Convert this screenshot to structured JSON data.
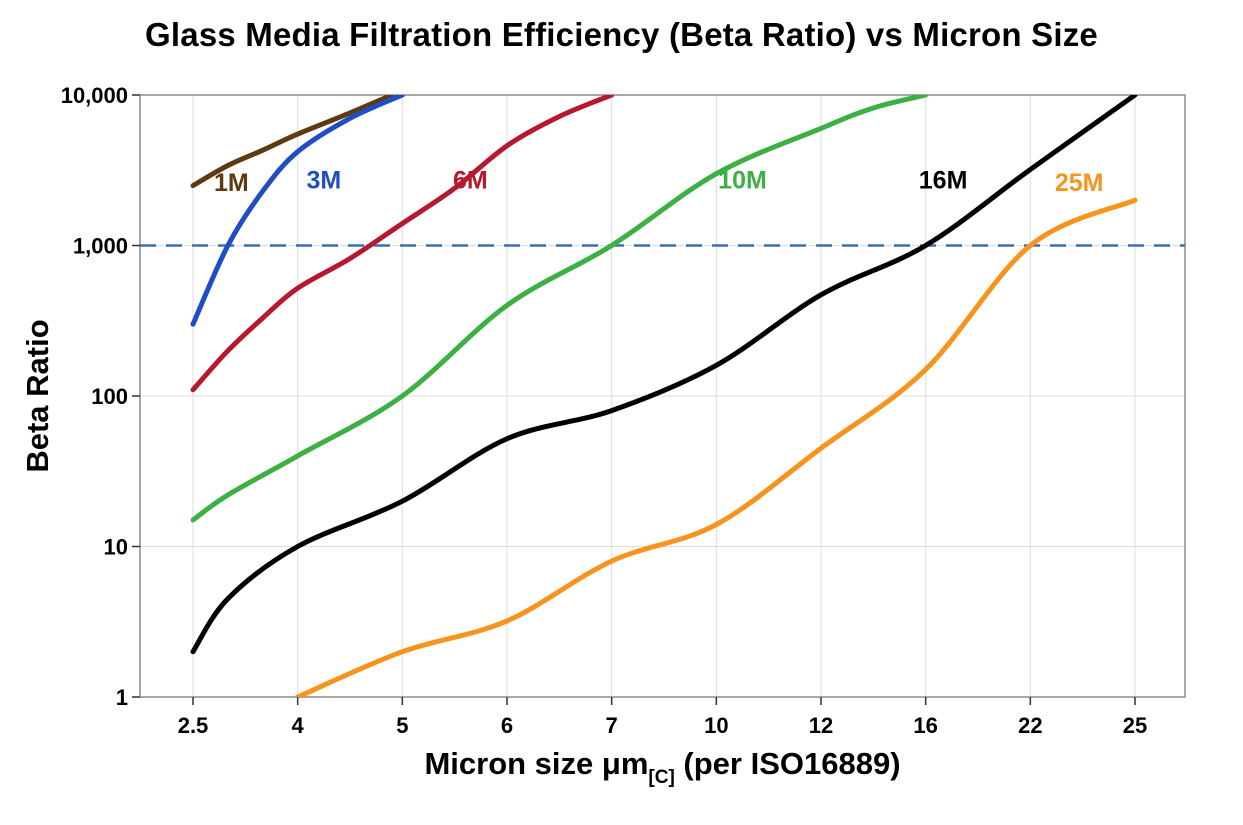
{
  "chart": {
    "title": "Glass Media Filtration Efficiency (Beta Ratio) vs Micron Size",
    "ylabel": "Beta Ratio",
    "xlabel_main": "Micron size μm",
    "xlabel_sub": "[C]",
    "xlabel_rest": " (per ISO16889)"
  },
  "chart_data": {
    "type": "line",
    "title": "Glass Media Filtration Efficiency (Beta Ratio) vs Micron Size",
    "xlabel": "Micron size μm[C] (per ISO16889)",
    "ylabel": "Beta Ratio",
    "x_scale": "category",
    "y_scale": "log",
    "grid": true,
    "legend_position": "inline-labels",
    "x_categories": [
      2.5,
      4,
      5,
      6,
      7,
      10,
      12,
      16,
      22,
      25
    ],
    "x_tick_labels": [
      "2.5",
      "4",
      "5",
      "6",
      "7",
      "10",
      "12",
      "16",
      "22",
      "25"
    ],
    "y_ticks": [
      1,
      10,
      100,
      1000,
      10000
    ],
    "y_tick_labels": [
      "1",
      "10",
      "100",
      "1,000",
      "10,000"
    ],
    "ylim": [
      1,
      10000
    ],
    "threshold_line": {
      "y": 1000,
      "style": "dashed",
      "color": "#3d6eb5"
    },
    "series": [
      {
        "name": "1M",
        "color": "#5e3a10",
        "label_pos": [
          3.05,
          2300
        ],
        "points": [
          [
            2.5,
            2500
          ],
          [
            3,
            3400
          ],
          [
            3.5,
            4300
          ],
          [
            4,
            5500
          ],
          [
            4.5,
            7600
          ],
          [
            4.9,
            10000
          ]
        ]
      },
      {
        "name": "3M",
        "color": "#1f4dc5",
        "label_pos": [
          4.25,
          2400
        ],
        "points": [
          [
            2.5,
            300
          ],
          [
            3,
            1000
          ],
          [
            3.5,
            2300
          ],
          [
            4,
            4200
          ],
          [
            4.5,
            7000
          ],
          [
            5,
            10000
          ]
        ]
      },
      {
        "name": "6M",
        "color": "#b5182f",
        "label_pos": [
          5.65,
          2400
        ],
        "points": [
          [
            2.5,
            110
          ],
          [
            3,
            200
          ],
          [
            3.5,
            330
          ],
          [
            4,
            520
          ],
          [
            4.5,
            820
          ],
          [
            5,
            1400
          ],
          [
            5.5,
            2400
          ],
          [
            6,
            4600
          ],
          [
            6.5,
            7200
          ],
          [
            7,
            10000
          ]
        ]
      },
      {
        "name": "10M",
        "color": "#3cb043",
        "label_pos": [
          10.5,
          2400
        ],
        "points": [
          [
            2.5,
            15
          ],
          [
            3,
            22
          ],
          [
            4,
            40
          ],
          [
            5,
            100
          ],
          [
            6,
            400
          ],
          [
            7,
            1000
          ],
          [
            10,
            3000
          ],
          [
            12,
            6000
          ],
          [
            14,
            8200
          ],
          [
            16,
            10000
          ]
        ]
      },
      {
        "name": "16M",
        "color": "#000000",
        "label_pos": [
          17.0,
          2400
        ],
        "points": [
          [
            2.5,
            2
          ],
          [
            3,
            4.5
          ],
          [
            4,
            10
          ],
          [
            5,
            20
          ],
          [
            6,
            52
          ],
          [
            7,
            80
          ],
          [
            10,
            160
          ],
          [
            12,
            470
          ],
          [
            16,
            1000
          ],
          [
            22,
            3200
          ],
          [
            25,
            10000
          ]
        ]
      },
      {
        "name": "25M",
        "color": "#f7941e",
        "label_pos": [
          23.4,
          2300
        ],
        "points": [
          [
            4,
            1
          ],
          [
            5,
            2
          ],
          [
            6,
            3.2
          ],
          [
            7,
            8
          ],
          [
            10,
            14
          ],
          [
            12,
            45
          ],
          [
            16,
            150
          ],
          [
            22,
            1000
          ],
          [
            25,
            2000
          ]
        ]
      }
    ]
  }
}
